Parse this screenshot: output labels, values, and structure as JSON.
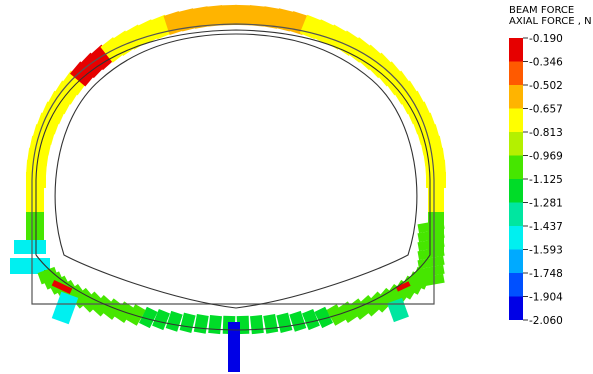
{
  "legend": {
    "title_line1": "BEAM FORCE",
    "title_line2": "AXIAL FORCE , N",
    "bands": [
      {
        "value": "-0.190",
        "color": "#e60000"
      },
      {
        "value": "-0.346",
        "color": "#ff5a00"
      },
      {
        "value": "-0.502",
        "color": "#ffb400"
      },
      {
        "value": "-0.657",
        "color": "#ffff00"
      },
      {
        "value": "-0.813",
        "color": "#b4f000"
      },
      {
        "value": "-0.969",
        "color": "#46e600"
      },
      {
        "value": "-1.125",
        "color": "#00dc28"
      },
      {
        "value": "-1.281",
        "color": "#00e6a0"
      },
      {
        "value": "-1.437",
        "color": "#00f0f0"
      },
      {
        "value": "-1.593",
        "color": "#00aaff"
      },
      {
        "value": "-1.748",
        "color": "#0050ff"
      },
      {
        "value": "-1.904",
        "color": "#0000e6"
      }
    ],
    "last_value": "-2.060"
  },
  "diagram": {
    "outer_lining_color": "#ffff00",
    "ring_color": "#444444"
  }
}
